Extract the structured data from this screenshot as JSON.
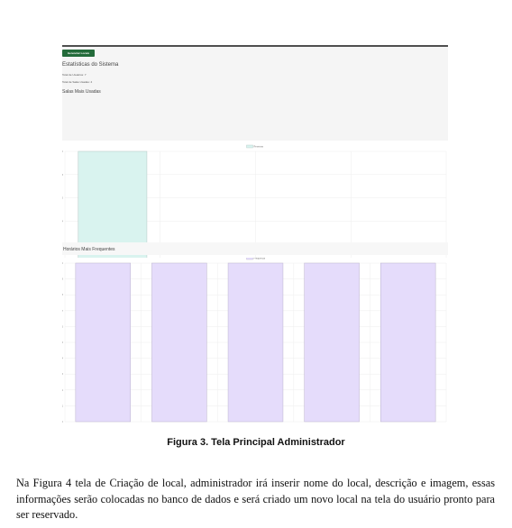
{
  "screenshot": {
    "button_label": "Gerenciar Locais",
    "stats_title": "Estatísticas do Sistema",
    "stat_users": "Total de Usuários: 7",
    "stat_rooms": "Total de Salas Usadas: 4",
    "rooms_title": "Salas Mais Usadas",
    "hours_title": "Horários Mais Frequentes"
  },
  "chart_data": [
    {
      "type": "bar",
      "title": "Salas Mais Usadas",
      "categories": [
        "",
        "",
        "",
        ""
      ],
      "series": [
        {
          "name": "Reservas",
          "values": [
            2,
            1,
            1,
            1
          ]
        }
      ],
      "y_ticks": [
        "2.0",
        "1.8",
        "1.6",
        "1.4",
        "1.2",
        "1.0"
      ],
      "ylim": [
        1,
        2
      ],
      "color": "#d9f3ef",
      "grid": true,
      "legend": "top"
    },
    {
      "type": "bar",
      "title": "Horários Mais Frequentes",
      "categories": [
        "",
        "",
        "",
        "",
        ""
      ],
      "series": [
        {
          "name": "Frequência",
          "values": [
            1,
            1,
            1,
            1,
            1
          ]
        }
      ],
      "y_ticks": [
        "1.0",
        "0.9",
        "0.8",
        "0.7",
        "0.6",
        "0.5",
        "0.4",
        "0.3",
        "0.2",
        "0.1",
        "0"
      ],
      "ylim": [
        0,
        1
      ],
      "color": "#e5dcfb",
      "grid": true,
      "legend": "top"
    }
  ],
  "figure": {
    "caption": "Figura 3. Tela Principal Administrador"
  },
  "paragraph": "Na Figura 4 tela de Criação de local, administrador irá inserir nome do local, descrição e imagem, essas informações serão colocadas no banco de dados e será criado um novo local na tela do usuário pronto para ser reservado."
}
